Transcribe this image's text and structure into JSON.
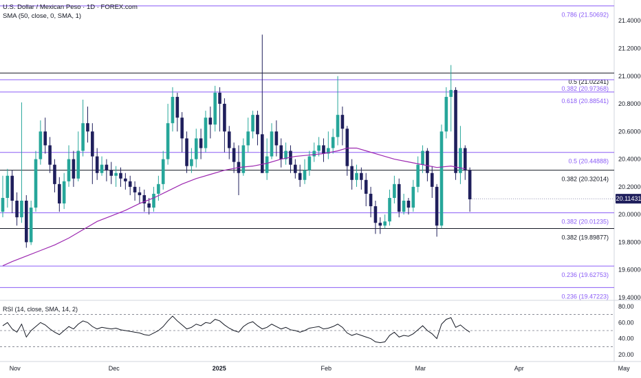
{
  "header": {
    "title": "U.S. Dollar / Mexican Peso · 1D · FOREX.com",
    "sma_label": "SMA (50, close, 0, SMA, 1)",
    "rsi_label": "RSI (14, close, SMA, 14, 2)"
  },
  "colors": {
    "up": "#26a69a",
    "down": "#1f1f5c",
    "sma": "#9c27b0",
    "fib_line": "#8a5cf6",
    "fib_text": "#8a5cf6",
    "level_line": "#131722",
    "grid": "#e0e3eb",
    "axis_text": "#131722",
    "last_price_bg": "#1f1f5c"
  },
  "chart_data": [
    {
      "type": "candlestick",
      "symbol": "USDMXN",
      "interval": "1D",
      "ylim": [
        19.38,
        21.55
      ],
      "y_ticks": [
        "21.40000",
        "21.20000",
        "21.00000",
        "20.80000",
        "20.60000",
        "20.40000",
        "20.20000",
        "20.00000",
        "19.80000",
        "19.60000",
        "19.40000"
      ],
      "x_labels": [
        "Nov",
        "Dec",
        "2025",
        "Feb",
        "Mar",
        "Apr",
        "May"
      ],
      "x_label_dates": [
        "2024-11-01",
        "2024-12-01",
        "2025-01-01",
        "2025-02-01",
        "2025-03-01",
        "2025-04-01",
        "2025-05-01"
      ],
      "last_price": "20.11431",
      "fib_levels": [
        {
          "label": "0.786 (21.50692)",
          "value": 21.50692,
          "color": "fib"
        },
        {
          "label": "0.5 (21.02241)",
          "value": 21.02241,
          "color": "dark"
        },
        {
          "label": "0.382 (20.97368)",
          "value": 20.97368,
          "color": "fib"
        },
        {
          "label": "0.618 (20.88541)",
          "value": 20.88541,
          "color": "fib"
        },
        {
          "label": "0.5 (20.44888)",
          "value": 20.44888,
          "color": "fib"
        },
        {
          "label": "0.382 (20.32014)",
          "value": 20.32014,
          "color": "dark"
        },
        {
          "label": "0.382 (20.01235)",
          "value": 20.01235,
          "color": "fib"
        },
        {
          "label": "0.382 (19.89877)",
          "value": 19.89877,
          "color": "dark"
        },
        {
          "label": "0.236 (19.62753)",
          "value": 19.62753,
          "color": "fib"
        },
        {
          "label": "0.236 (19.47223)",
          "value": 19.47223,
          "color": "fib"
        }
      ],
      "candles": [
        [
          20.02,
          20.12,
          20.28,
          19.98
        ],
        [
          20.12,
          20.28,
          20.33,
          20.05
        ],
        [
          20.28,
          20.1,
          20.32,
          20.01
        ],
        [
          20.1,
          19.98,
          20.16,
          19.92
        ],
        [
          19.98,
          20.1,
          20.81,
          19.94
        ],
        [
          20.1,
          19.8,
          20.14,
          19.76
        ],
        [
          19.8,
          20.05,
          20.1,
          19.78
        ],
        [
          20.05,
          20.4,
          20.46,
          20.02
        ],
        [
          20.4,
          20.6,
          20.68,
          20.36
        ],
        [
          20.6,
          20.5,
          20.7,
          20.44
        ],
        [
          20.5,
          20.36,
          20.56,
          20.3
        ],
        [
          20.36,
          20.22,
          20.4,
          20.16
        ],
        [
          20.22,
          20.08,
          20.27,
          20.02
        ],
        [
          20.08,
          20.24,
          20.3,
          20.04
        ],
        [
          20.24,
          20.4,
          20.5,
          20.2
        ],
        [
          20.4,
          20.26,
          20.46,
          20.2
        ],
        [
          20.26,
          20.46,
          20.6,
          20.24
        ],
        [
          20.46,
          20.66,
          20.83,
          20.42
        ],
        [
          20.66,
          20.6,
          20.78,
          20.52
        ],
        [
          20.6,
          20.42,
          20.66,
          20.22
        ],
        [
          20.42,
          20.3,
          20.48,
          20.25
        ],
        [
          20.3,
          20.36,
          20.42,
          20.28
        ],
        [
          20.36,
          20.32,
          20.4,
          20.24
        ],
        [
          20.32,
          20.28,
          20.38,
          20.22
        ],
        [
          20.28,
          20.3,
          20.35,
          20.2
        ],
        [
          20.3,
          20.26,
          20.34,
          20.2
        ],
        [
          20.26,
          20.24,
          20.3,
          20.18
        ],
        [
          20.24,
          20.2,
          20.28,
          20.14
        ],
        [
          20.2,
          20.16,
          20.24,
          20.1
        ],
        [
          20.16,
          20.14,
          20.2,
          20.08
        ],
        [
          20.14,
          20.08,
          20.18,
          20.02
        ],
        [
          20.08,
          20.05,
          20.12,
          20.0
        ],
        [
          20.05,
          20.15,
          20.2,
          20.02
        ],
        [
          20.15,
          20.22,
          20.28,
          20.1
        ],
        [
          20.22,
          20.4,
          20.46,
          20.18
        ],
        [
          20.4,
          20.66,
          20.8,
          20.36
        ],
        [
          20.66,
          20.85,
          20.92,
          20.6
        ],
        [
          20.85,
          20.7,
          20.88,
          20.6
        ],
        [
          20.7,
          20.55,
          20.74,
          20.45
        ],
        [
          20.55,
          20.35,
          20.6,
          20.3
        ],
        [
          20.35,
          20.4,
          20.48,
          20.3
        ],
        [
          20.4,
          20.55,
          20.62,
          20.34
        ],
        [
          20.55,
          20.48,
          20.62,
          20.4
        ],
        [
          20.48,
          20.7,
          20.75,
          20.45
        ],
        [
          20.7,
          20.65,
          20.78,
          20.55
        ],
        [
          20.65,
          20.88,
          20.93,
          20.6
        ],
        [
          20.88,
          20.8,
          20.92,
          20.6
        ],
        [
          20.8,
          20.6,
          20.84,
          20.45
        ],
        [
          20.6,
          20.48,
          20.64,
          20.4
        ],
        [
          20.48,
          20.38,
          20.52,
          20.3
        ],
        [
          20.38,
          20.3,
          20.5,
          20.14
        ],
        [
          20.3,
          20.5,
          20.55,
          20.28
        ],
        [
          20.5,
          20.6,
          20.7,
          20.45
        ],
        [
          20.6,
          20.72,
          20.75,
          20.55
        ],
        [
          20.72,
          20.58,
          20.75,
          20.5
        ],
        [
          20.58,
          20.3,
          21.3,
          20.3
        ],
        [
          20.3,
          20.42,
          20.55,
          20.25
        ],
        [
          20.42,
          20.6,
          20.66,
          20.4
        ],
        [
          20.6,
          20.5,
          20.68,
          20.42
        ],
        [
          20.5,
          20.4,
          20.55,
          20.34
        ],
        [
          20.4,
          20.46,
          20.52,
          20.36
        ],
        [
          20.46,
          20.36,
          20.5,
          20.3
        ],
        [
          20.36,
          20.3,
          20.4,
          20.26
        ],
        [
          20.3,
          20.25,
          20.36,
          20.2
        ],
        [
          20.25,
          20.32,
          20.4,
          20.22
        ],
        [
          20.32,
          20.42,
          20.46,
          20.28
        ],
        [
          20.42,
          20.46,
          20.52,
          20.38
        ],
        [
          20.46,
          20.5,
          20.56,
          20.42
        ],
        [
          20.5,
          20.44,
          20.55,
          20.38
        ],
        [
          20.44,
          20.48,
          20.6,
          20.4
        ],
        [
          20.48,
          20.56,
          20.62,
          20.44
        ],
        [
          20.56,
          20.72,
          21.0,
          20.5
        ],
        [
          20.72,
          20.62,
          20.78,
          20.5
        ],
        [
          20.62,
          20.35,
          20.64,
          20.28
        ],
        [
          20.35,
          20.25,
          20.4,
          20.18
        ],
        [
          20.25,
          20.3,
          20.36,
          20.2
        ],
        [
          20.3,
          20.25,
          20.34,
          20.18
        ],
        [
          20.25,
          20.15,
          20.3,
          20.06
        ],
        [
          20.15,
          20.06,
          20.2,
          19.98
        ],
        [
          20.06,
          19.94,
          20.1,
          19.86
        ],
        [
          19.94,
          19.92,
          19.98,
          19.86
        ],
        [
          19.92,
          19.95,
          20.0,
          19.9
        ],
        [
          19.95,
          20.12,
          20.18,
          19.92
        ],
        [
          20.12,
          20.22,
          20.28,
          20.08
        ],
        [
          20.22,
          20.02,
          20.26,
          19.98
        ],
        [
          20.02,
          20.1,
          20.15,
          20.0
        ],
        [
          20.1,
          20.05,
          20.12,
          20.0
        ],
        [
          20.05,
          20.2,
          20.25,
          20.02
        ],
        [
          20.2,
          20.36,
          20.42,
          20.16
        ],
        [
          20.36,
          20.46,
          20.5,
          20.3
        ],
        [
          20.46,
          20.3,
          20.48,
          20.24
        ],
        [
          20.3,
          20.2,
          20.35,
          20.12
        ],
        [
          20.2,
          19.92,
          20.22,
          19.84
        ],
        [
          19.92,
          20.6,
          20.65,
          19.9
        ],
        [
          20.6,
          20.85,
          20.92,
          20.55
        ],
        [
          20.85,
          20.9,
          21.08,
          20.6
        ],
        [
          20.9,
          20.3,
          20.92,
          20.25
        ],
        [
          20.3,
          20.48,
          20.64,
          20.22
        ],
        [
          20.48,
          20.32,
          20.5,
          20.25
        ],
        [
          20.32,
          20.11,
          20.34,
          20.02
        ]
      ],
      "sma": [
        [
          0,
          19.63
        ],
        [
          2,
          19.66
        ],
        [
          5,
          19.7
        ],
        [
          8,
          19.74
        ],
        [
          11,
          19.78
        ],
        [
          14,
          19.83
        ],
        [
          17,
          19.89
        ],
        [
          20,
          19.95
        ],
        [
          23,
          19.99
        ],
        [
          26,
          20.03
        ],
        [
          29,
          20.08
        ],
        [
          32,
          20.12
        ],
        [
          35,
          20.17
        ],
        [
          38,
          20.22
        ],
        [
          41,
          20.26
        ],
        [
          44,
          20.29
        ],
        [
          47,
          20.32
        ],
        [
          50,
          20.34
        ],
        [
          53,
          20.35
        ],
        [
          56,
          20.37
        ],
        [
          59,
          20.4
        ],
        [
          62,
          20.42
        ],
        [
          65,
          20.43
        ],
        [
          68,
          20.44
        ],
        [
          71,
          20.46
        ],
        [
          73,
          20.48
        ],
        [
          75,
          20.48
        ],
        [
          77,
          20.46
        ],
        [
          80,
          20.43
        ],
        [
          83,
          20.4
        ],
        [
          86,
          20.38
        ],
        [
          89,
          20.36
        ],
        [
          92,
          20.34
        ],
        [
          95,
          20.35
        ],
        [
          98,
          20.33
        ]
      ],
      "rsi": {
        "ylim": [
          15,
          85
        ],
        "ticks": [
          "80.00",
          "60.00",
          "40.00",
          "20.00"
        ],
        "bands": [
          70,
          50,
          30
        ],
        "values": [
          56,
          60,
          52,
          48,
          58,
          42,
          50,
          55,
          60,
          57,
          52,
          48,
          45,
          50,
          55,
          52,
          58,
          62,
          60,
          55,
          52,
          54,
          53,
          52,
          53,
          51,
          50,
          49,
          48,
          47,
          45,
          44,
          47,
          50,
          55,
          62,
          68,
          62,
          57,
          52,
          54,
          58,
          56,
          60,
          59,
          64,
          62,
          57,
          53,
          50,
          48,
          55,
          59,
          61,
          56,
          52,
          54,
          58,
          55,
          52,
          54,
          51,
          50,
          48,
          50,
          53,
          54,
          55,
          52,
          53,
          55,
          58,
          54,
          47,
          44,
          46,
          44,
          42,
          40,
          36,
          35,
          36,
          44,
          48,
          42,
          44,
          43,
          46,
          51,
          56,
          50,
          46,
          40,
          58,
          64,
          66,
          54,
          57,
          52,
          48
        ]
      }
    }
  ]
}
